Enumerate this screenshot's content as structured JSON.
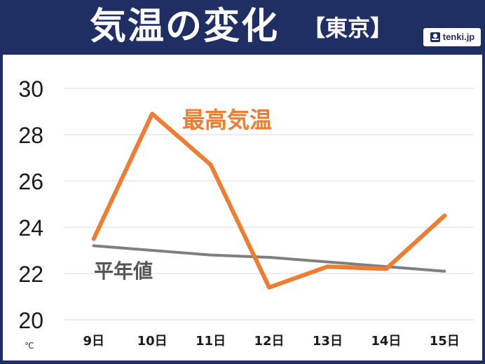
{
  "header": {
    "title": "気温の変化",
    "subtitle": "【東京】",
    "brand": "tenki.jp"
  },
  "colors": {
    "header_bg": "#1f2f63",
    "max_temp": "#ee7d32",
    "normal": "#7f7f7f"
  },
  "chart_data": {
    "type": "line",
    "title": "気温の変化",
    "subtitle": "【東京】",
    "categories": [
      "9日",
      "10日",
      "11日",
      "12日",
      "13日",
      "14日",
      "15日"
    ],
    "unit": "℃",
    "ylim": [
      20,
      30
    ],
    "yticks": [
      20,
      22,
      24,
      26,
      28,
      30
    ],
    "grid": true,
    "series": [
      {
        "name": "最高気温",
        "values": [
          23.5,
          28.9,
          26.7,
          21.4,
          22.3,
          22.2,
          24.5
        ],
        "color": "#ee7d32"
      },
      {
        "name": "平年値",
        "values": [
          23.2,
          23.0,
          22.8,
          22.7,
          22.5,
          22.3,
          22.1
        ],
        "color": "#7f7f7f"
      }
    ]
  }
}
